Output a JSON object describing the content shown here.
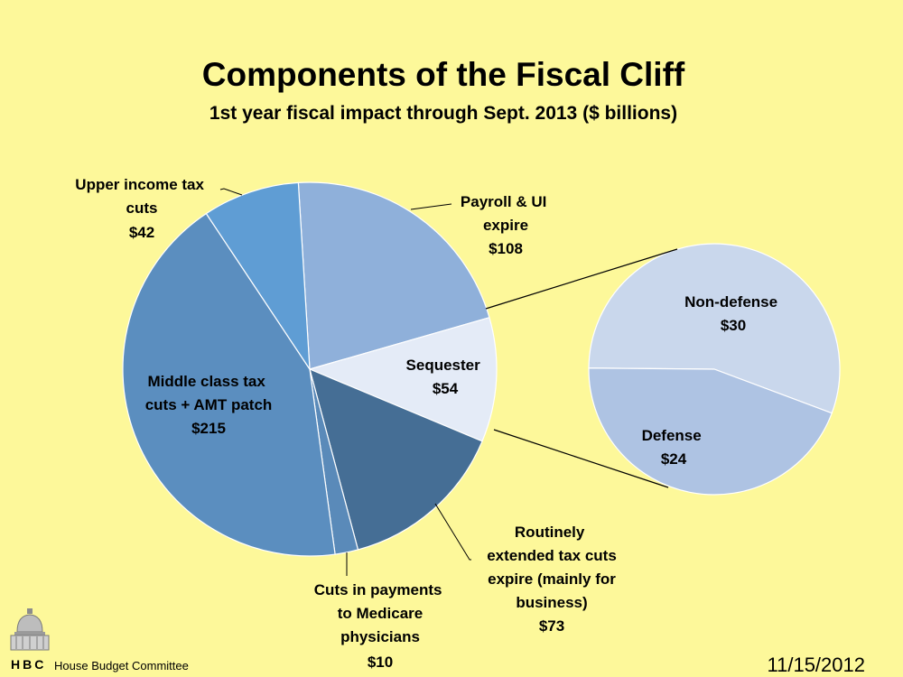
{
  "chart_data": [
    {
      "type": "pie",
      "title": "Components of the Fiscal Cliff",
      "subtitle": "1st year fiscal impact through Sept. 2013 ($ billions)",
      "slices": [
        {
          "label": "Payroll & UI expire",
          "value_label": "$108",
          "value": 108,
          "color": "#8fb0da"
        },
        {
          "label": "Sequester",
          "value_label": "$54",
          "value": 54,
          "color": "#e4ebf7"
        },
        {
          "label": "Routinely extended tax cuts expire (mainly for business)",
          "value_label": "$73",
          "value": 73,
          "color": "#456e95"
        },
        {
          "label": "Cuts in payments to Medicare physicians",
          "value_label": "$10",
          "value": 10,
          "color": "#5a8ab9"
        },
        {
          "label": "Middle class tax cuts + AMT patch",
          "value_label": "$215",
          "value": 215,
          "color": "#5b8ebf"
        },
        {
          "label": "Upper income tax cuts",
          "value_label": "$42",
          "value": 42,
          "color": "#5f9dd4"
        }
      ]
    },
    {
      "type": "pie",
      "breakout_of": "Sequester",
      "slices": [
        {
          "label": "Non-defense",
          "value_label": "$30",
          "value": 30,
          "color": "#c9d7ec"
        },
        {
          "label": "Defense",
          "value_label": "$24",
          "value": 24,
          "color": "#aec3e3"
        }
      ]
    }
  ],
  "footer": {
    "org": "House Budget Committee",
    "abbr": "HBC",
    "date": "11/15/2012"
  }
}
